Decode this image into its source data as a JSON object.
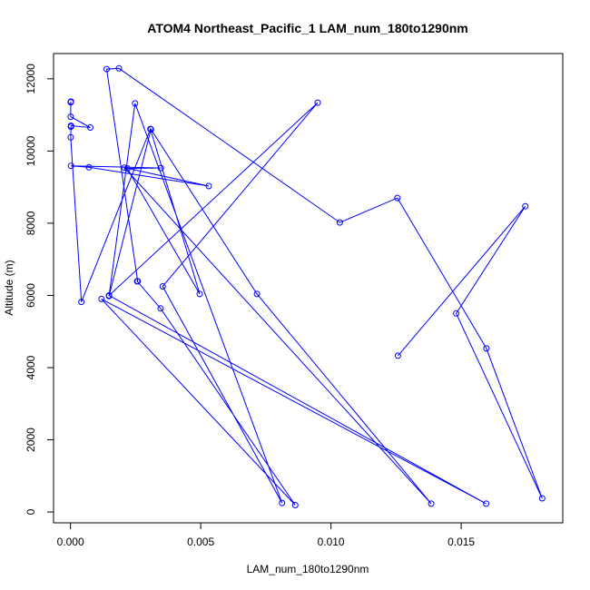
{
  "chart_data": {
    "type": "line",
    "title": "ATOM4 Northeast_Pacific_1 LAM_num_180to1290nm",
    "xlabel": "LAM_num_180to1290nm",
    "ylabel": "Altitude (m)",
    "xlim": [
      -0.00065,
      0.0189
    ],
    "ylim": [
      -300,
      12700
    ],
    "xticks": [
      0,
      0.005,
      0.01,
      0.015
    ],
    "xtick_labels": [
      "0.000",
      "0.005",
      "0.010",
      "0.015"
    ],
    "yticks": [
      0,
      2000,
      4000,
      6000,
      8000,
      10000,
      12000
    ],
    "ytick_labels": [
      "0",
      "2000",
      "4000",
      "6000",
      "8000",
      "10000",
      "12000"
    ],
    "grid": false,
    "legend": "none",
    "series": [
      {
        "color": "#0000ff",
        "marker": "open-circle",
        "x": [
          0.01257,
          0.01746,
          0.01481,
          0.01811,
          0.01597,
          0.01255,
          0.01034,
          0.00186,
          0.00139,
          0.00258,
          0.00256,
          0.00346,
          0.00863,
          0.00119,
          0.01596,
          0.00148,
          0.00949,
          0.00354,
          0.00812,
          0.00248,
          0.00148,
          0.00309,
          0.00716,
          0.01385,
          0.00207,
          0.00531,
          0.00071,
          2e-05,
          0.00347,
          0.00218,
          0.00496,
          0.00307,
          0.00042,
          1e-05,
          2e-05,
          2e-05,
          0.00076,
          1e-05,
          1e-05,
          2e-05
        ],
        "y": [
          4330,
          8470,
          5500,
          380,
          4530,
          8700,
          8020,
          12290,
          12270,
          6390,
          6390,
          5640,
          190,
          5900,
          230,
          6000,
          11340,
          6250,
          250,
          11320,
          5980,
          10600,
          6040,
          230,
          9540,
          9030,
          9550,
          9590,
          9530,
          9520,
          6040,
          10610,
          5820,
          10380,
          10670,
          10700,
          10650,
          10950,
          11350,
          11370
        ]
      }
    ]
  }
}
